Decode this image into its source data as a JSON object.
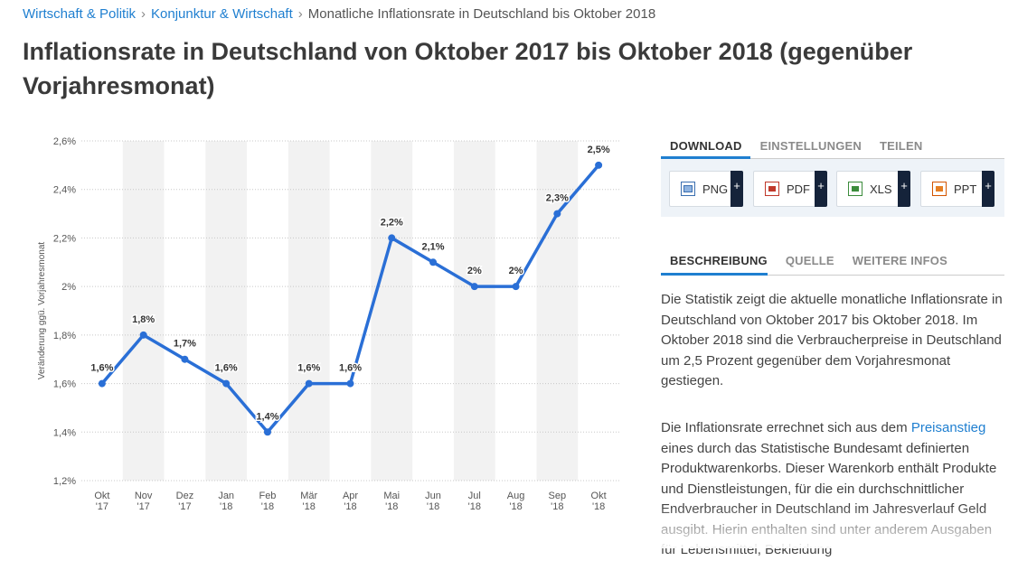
{
  "breadcrumb": {
    "items": [
      "Wirtschaft & Politik",
      "Konjunktur & Wirtschaft"
    ],
    "current": "Monatliche Inflationsrate in Deutschland bis Oktober 2018"
  },
  "page_title": "Inflationsrate in Deutschland von Oktober 2017 bis Oktober 2018 (gegenüber Vorjahresmonat)",
  "chart_data": {
    "type": "line",
    "categories": [
      "Okt '17",
      "Nov '17",
      "Dez '17",
      "Jan '18",
      "Feb '18",
      "Mär '18",
      "Apr '18",
      "Mai '18",
      "Jun '18",
      "Jul '18",
      "Aug '18",
      "Sep '18",
      "Okt '18"
    ],
    "values": [
      1.6,
      1.8,
      1.7,
      1.6,
      1.4,
      1.6,
      1.6,
      2.2,
      2.1,
      2.0,
      2.0,
      2.3,
      2.5
    ],
    "data_labels": [
      "1,6%",
      "1,8%",
      "1,7%",
      "1,6%",
      "1,4%",
      "1,6%",
      "1,6%",
      "2,2%",
      "2,1%",
      "2%",
      "2%",
      "2,3%",
      "2,5%"
    ],
    "y_ticks": [
      1.2,
      1.4,
      1.6,
      1.8,
      2.0,
      2.2,
      2.4,
      2.6
    ],
    "y_tick_labels": [
      "1,2%",
      "1,4%",
      "1,6%",
      "1,8%",
      "2%",
      "2,2%",
      "2,4%",
      "2,6%"
    ],
    "ylim": [
      1.2,
      2.6
    ],
    "ylabel": "Veränderung ggü. Vorjahresmonat",
    "xlabel": "",
    "grid": true,
    "line_color": "#2a6fd6",
    "band_color": "#f2f2f2"
  },
  "download_tabs": [
    "DOWNLOAD",
    "EINSTELLUNGEN",
    "TEILEN"
  ],
  "download_buttons": [
    {
      "label": "PNG",
      "icon": "png-file-icon",
      "color": "#3b6fb0"
    },
    {
      "label": "PDF",
      "icon": "pdf-file-icon",
      "color": "#c0392b"
    },
    {
      "label": "XLS",
      "icon": "xls-file-icon",
      "color": "#3c8c3c"
    },
    {
      "label": "PPT",
      "icon": "ppt-file-icon",
      "color": "#d35400"
    }
  ],
  "plus_symbol": "+",
  "info_tabs": [
    "BESCHREIBUNG",
    "QUELLE",
    "WEITERE INFOS"
  ],
  "description": {
    "paragraph1": "Die Statistik zeigt die aktuelle monatliche Inflationsrate in Deutschland von Oktober 2017 bis Oktober 2018. Im Oktober 2018 sind die Verbraucherpreise in Deutschland um 2,5 Prozent gegenüber dem Vorjahresmonat gestiegen.",
    "p2_before": "Die Inflationsrate errechnet sich aus dem ",
    "p2_link": "Preisanstieg",
    "p2_after": " eines durch das Statistische Bundesamt definierten Produktwarenkorbs. Dieser Warenkorb enthält Produkte und Dienstleistungen, für die ein durchschnittlicher Endverbraucher in Deutschland im Jahresverlauf Geld ausgibt. Hierin enthalten sind unter anderem Ausgaben für Lebensmittel, Bekleidung"
  },
  "colors": {
    "accent": "#1f7fd0",
    "dark": "#15233a"
  }
}
